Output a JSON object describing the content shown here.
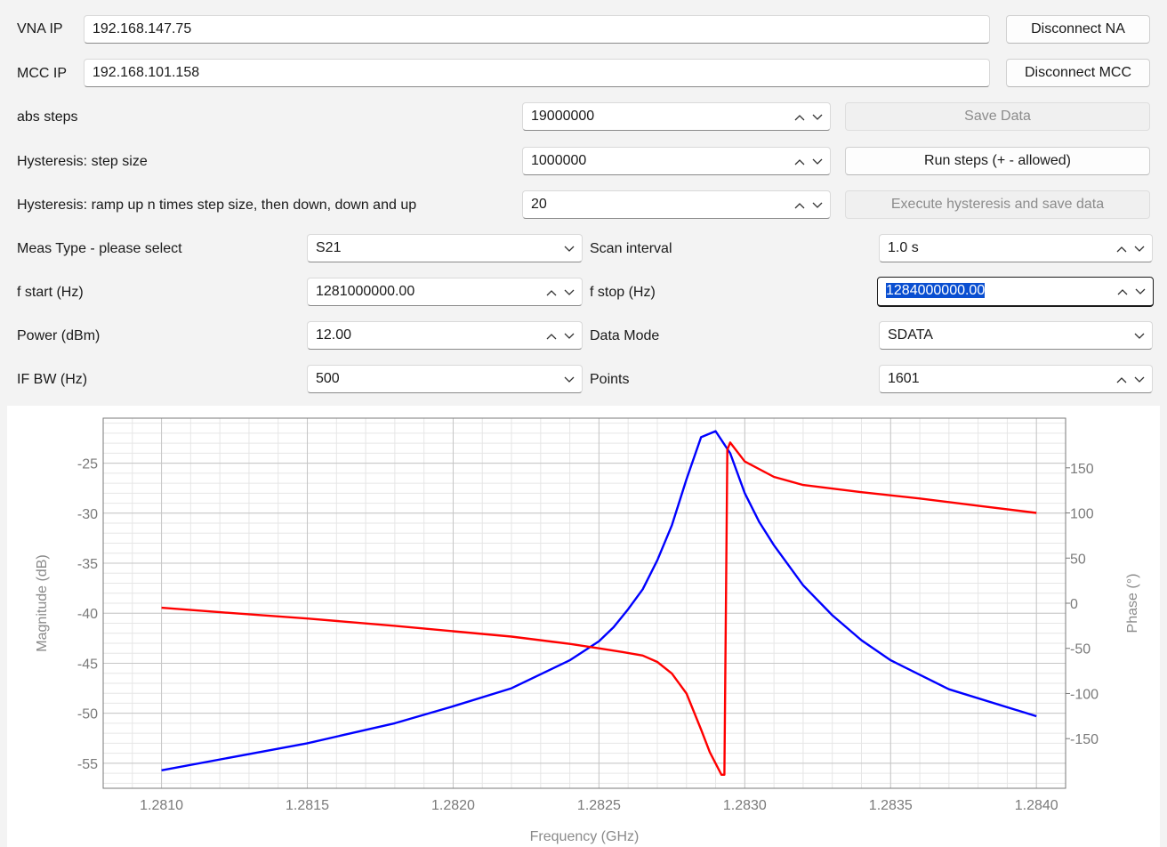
{
  "connection": {
    "vna_label": "VNA IP",
    "vna_value": "192.168.147.75",
    "vna_button": "Disconnect NA",
    "mcc_label": "MCC IP",
    "mcc_value": "192.168.101.158",
    "mcc_button": "Disconnect MCC"
  },
  "motor": {
    "abs_steps_label": "abs steps",
    "abs_steps_value": "19000000",
    "save_data_button": "Save Data",
    "hyst_step_label": "Hysteresis: step size",
    "hyst_step_value": "1000000",
    "run_steps_button": "Run steps (+ - allowed)",
    "hyst_ramp_label": "Hysteresis: ramp up n times step size, then down, down and up",
    "hyst_ramp_value": "20",
    "execute_button": "Execute hysteresis and save data"
  },
  "measurement": {
    "meas_type_label": "Meas Type - please select",
    "meas_type_value": "S21",
    "scan_interval_label": "Scan interval",
    "scan_interval_value": "1.0 s",
    "f_start_label": "f start (Hz)",
    "f_start_value": "1281000000.00",
    "f_stop_label": "f stop (Hz)",
    "f_stop_value": "1284000000.00",
    "power_label": "Power (dBm)",
    "power_value": "12.00",
    "data_mode_label": "Data Mode",
    "data_mode_value": "SDATA",
    "ifbw_label": "IF BW (Hz)",
    "ifbw_value": "500",
    "points_label": "Points",
    "points_value": "1601"
  },
  "chart_data": {
    "type": "line",
    "xlabel": "Frequency (GHz)",
    "ylabel": "Magnitude (dB)",
    "y2label": "Phase (°)",
    "xlim": [
      1.2808,
      1.2841
    ],
    "ylim": [
      -57.5,
      -20.5
    ],
    "y2lim": [
      -205,
      205
    ],
    "x_ticks": [
      "1.2810",
      "1.2815",
      "1.2820",
      "1.2825",
      "1.2830",
      "1.2835",
      "1.2840"
    ],
    "y_ticks": [
      "-25",
      "-30",
      "-35",
      "-40",
      "-45",
      "-50",
      "-55"
    ],
    "y2_ticks": [
      "150",
      "100",
      "50",
      "0",
      "-50",
      "-100",
      "-150"
    ],
    "grid": true,
    "series": [
      {
        "color": "#0000ff",
        "axis": "left",
        "x": [
          1.281,
          1.2815,
          1.2818,
          1.282,
          1.2822,
          1.2824,
          1.2825,
          1.28255,
          1.2826,
          1.28265,
          1.2827,
          1.28275,
          1.2828,
          1.28285,
          1.2829,
          1.28295,
          1.283,
          1.28305,
          1.2831,
          1.2832,
          1.2833,
          1.2834,
          1.2835,
          1.2837,
          1.284
        ],
        "y": [
          -55.7,
          -53.0,
          -51.0,
          -49.3,
          -47.5,
          -44.7,
          -42.8,
          -41.4,
          -39.6,
          -37.6,
          -34.7,
          -31.2,
          -26.6,
          -22.4,
          -21.8,
          -24.0,
          -28.0,
          -30.9,
          -33.2,
          -37.2,
          -40.2,
          -42.7,
          -44.7,
          -47.6,
          -50.3
        ]
      },
      {
        "color": "#ff0000",
        "axis": "right",
        "x": [
          1.281,
          1.2812,
          1.2815,
          1.2818,
          1.282,
          1.2822,
          1.2824,
          1.2825,
          1.28258,
          1.28265,
          1.2827,
          1.28275,
          1.2828,
          1.28285,
          1.28288,
          1.28292,
          1.28293,
          1.28294,
          1.28295,
          1.283,
          1.2831,
          1.2832,
          1.2834,
          1.2836,
          1.2838,
          1.284
        ],
        "y": [
          -5,
          -10,
          -17,
          -25,
          -31,
          -37,
          -45,
          -50,
          -54,
          -58,
          -65,
          -78,
          -100,
          -140,
          -165,
          -190,
          -190,
          170,
          178,
          157,
          140,
          131,
          123,
          116,
          108,
          100
        ]
      }
    ]
  }
}
